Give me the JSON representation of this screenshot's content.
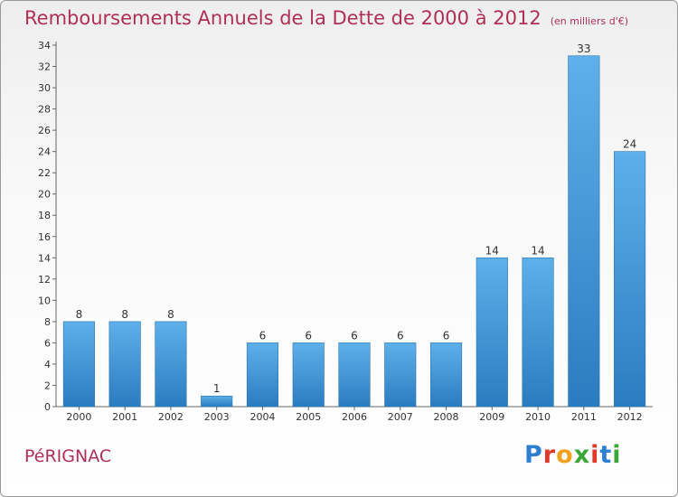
{
  "title": "Remboursements Annuels de la Dette de 2000 à 2012",
  "unit_note": "(en milliers d'€)",
  "town": "PéRIGNAC",
  "logo": {
    "text": "Proxiti",
    "letter_colors": [
      "#2e7fcf",
      "#e0382b",
      "#f0a21e",
      "#3aa637",
      "#e0382b",
      "#2e7fcf",
      "#3aa637"
    ]
  },
  "colors": {
    "bar": "#3d93d6",
    "bar_light": "#5aaee8",
    "axis": "#666666",
    "grid": "#cfcfcf"
  },
  "chart_data": {
    "type": "bar",
    "categories": [
      "2000",
      "2001",
      "2002",
      "2003",
      "2004",
      "2005",
      "2006",
      "2007",
      "2008",
      "2009",
      "2010",
      "2011",
      "2012"
    ],
    "values": [
      8,
      8,
      8,
      1,
      6,
      6,
      6,
      6,
      6,
      14,
      14,
      33,
      24
    ],
    "ylim": [
      0,
      34
    ],
    "yticks": [
      0,
      2,
      4,
      6,
      8,
      10,
      12,
      14,
      16,
      18,
      20,
      22,
      24,
      26,
      28,
      30,
      32,
      34
    ],
    "grid": false,
    "xlabel": "",
    "ylabel": ""
  }
}
